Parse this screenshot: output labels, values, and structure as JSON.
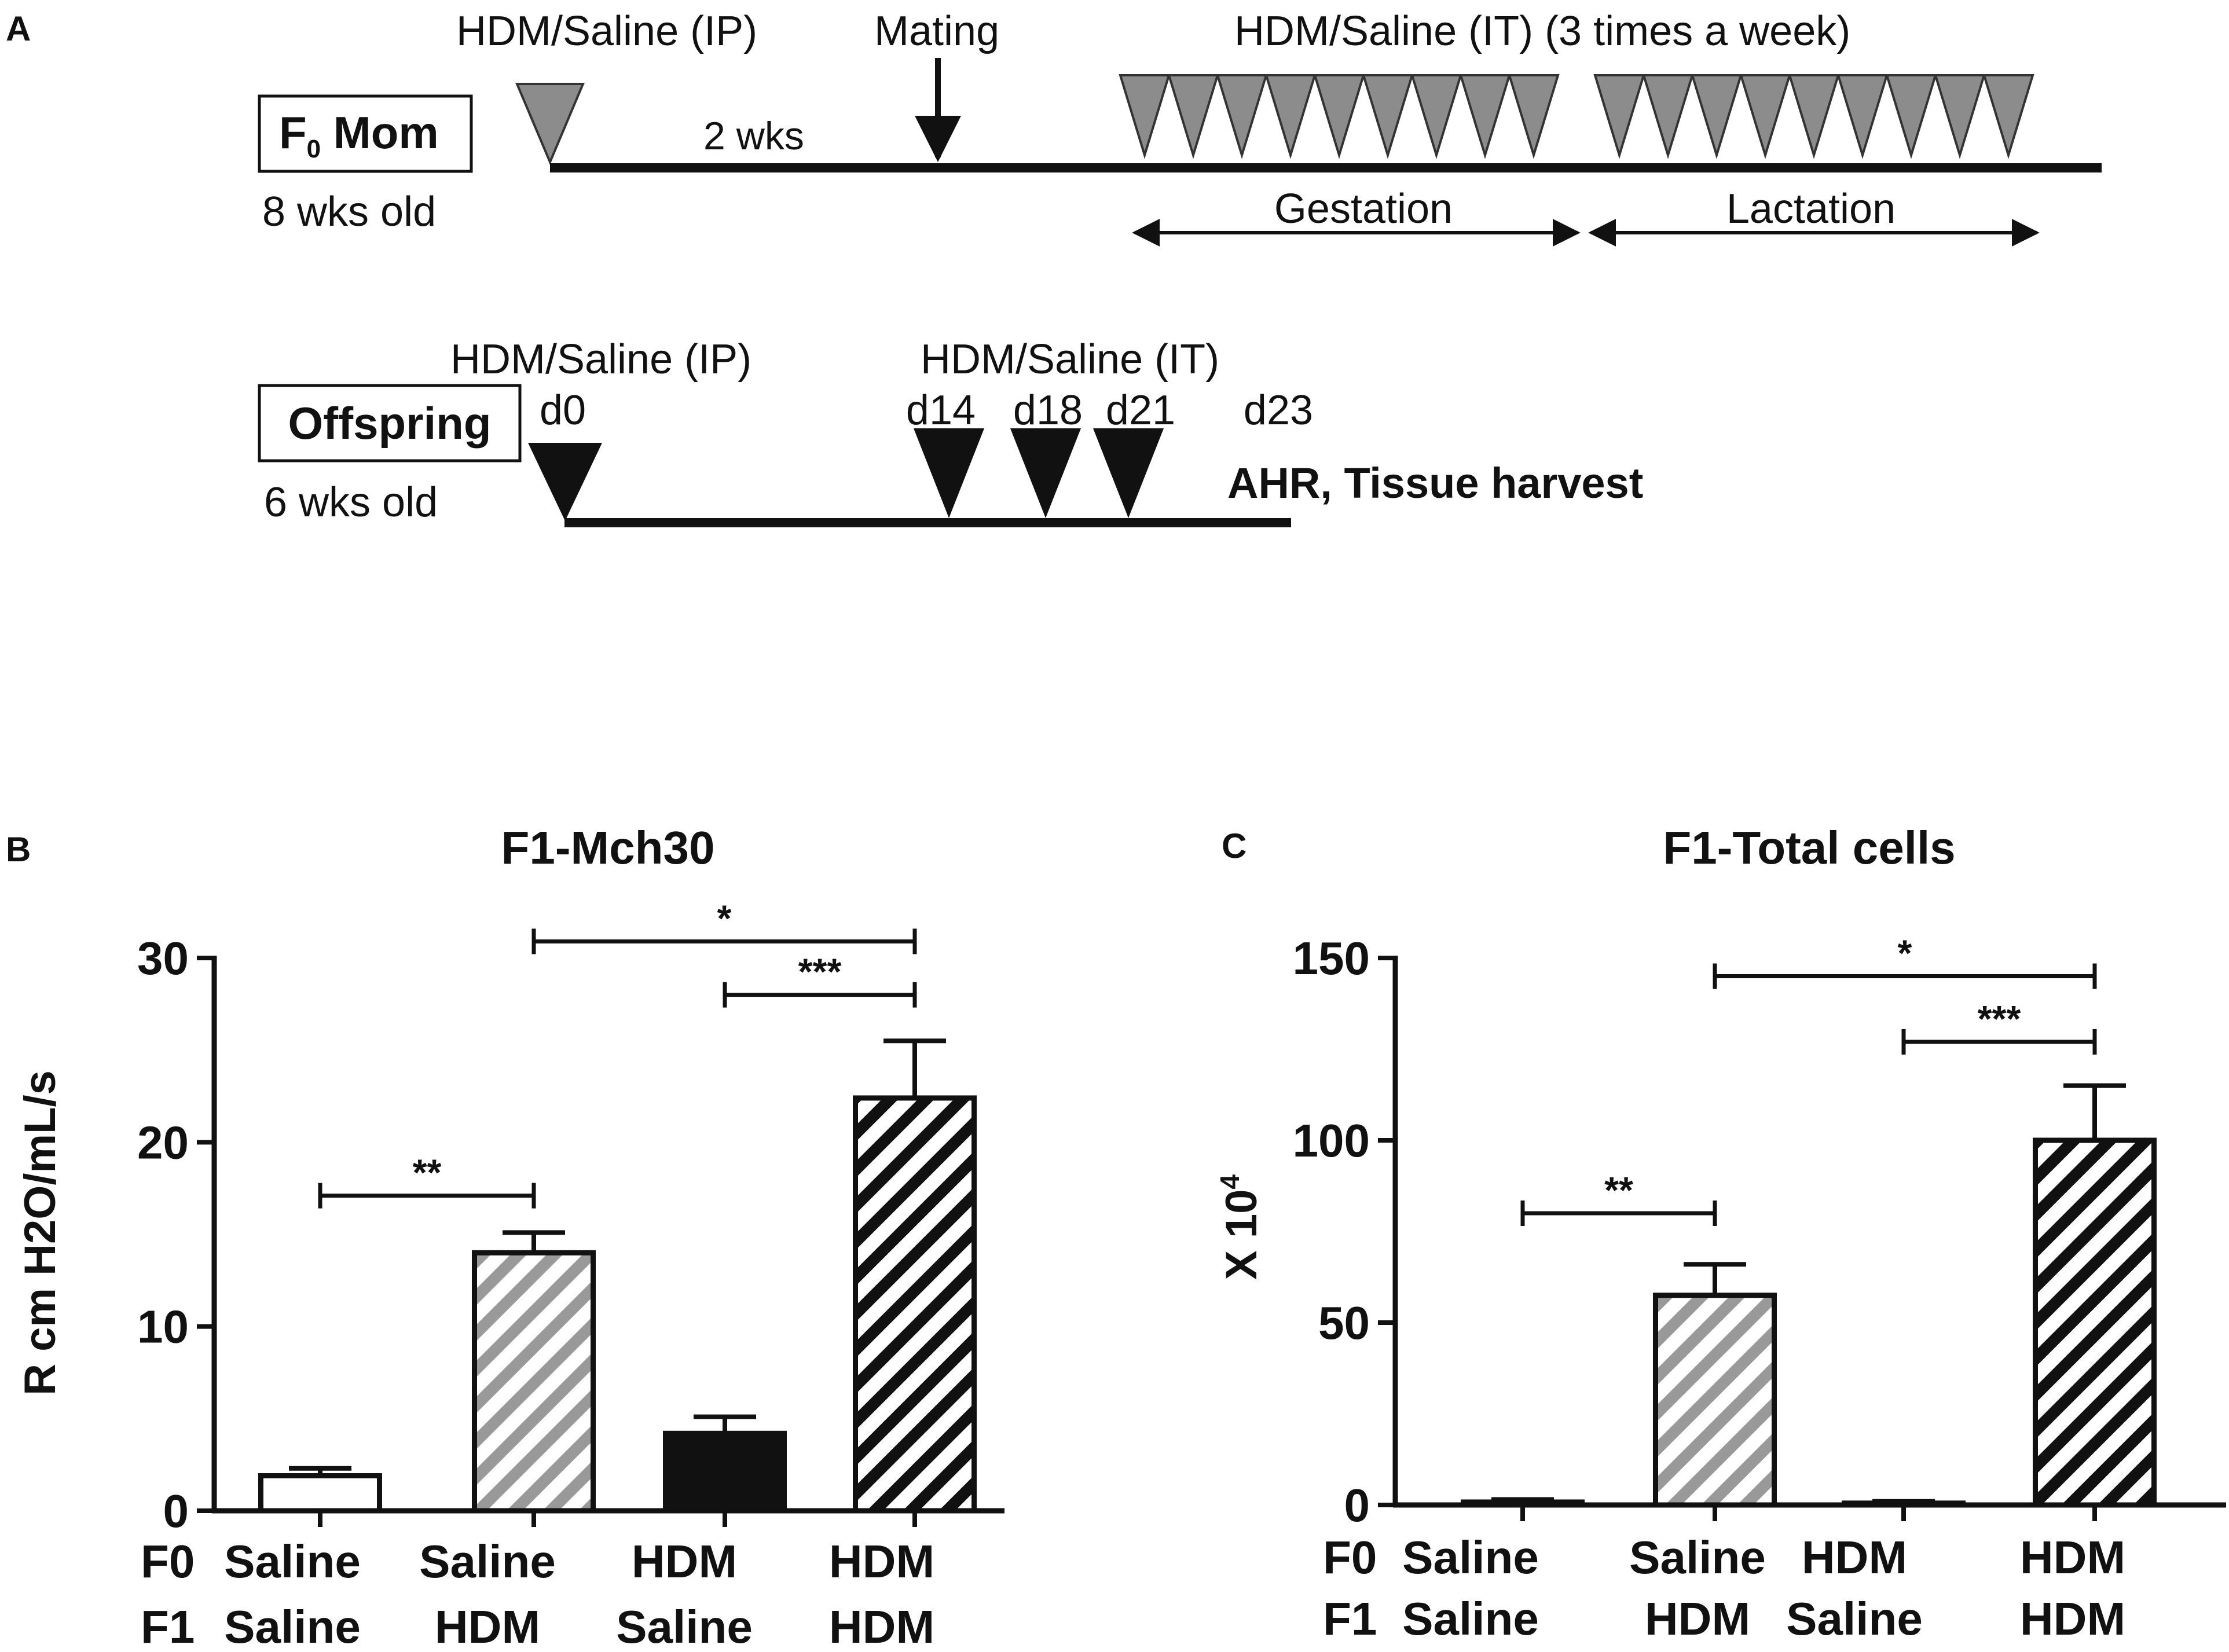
{
  "panel_a": {
    "letter": "A",
    "mom": {
      "box_label_main": "F",
      "box_label_sub": "0",
      "box_label_rest": " Mom",
      "age": "8 wks old",
      "ip_label": "HDM/Saline (IP)",
      "mating_label": "Mating",
      "interval_label": "2 wks",
      "it_label": "HDM/Saline (IT) (3 times a week)",
      "gestation_label": "Gestation",
      "lactation_label": "Lactation",
      "gestation_doses": 9,
      "lactation_doses": 9
    },
    "offspring": {
      "box_label": "Offspring",
      "age": "6 wks old",
      "ip_label": "HDM/Saline (IP)",
      "it_label": "HDM/Saline (IT)",
      "days": [
        "d0",
        "d14",
        "d18",
        "d21",
        "d23"
      ],
      "endpoint_label": "AHR, Tissue harvest"
    }
  },
  "chart_data": [
    {
      "panel": "B",
      "type": "bar",
      "title": "F1-Mch30",
      "ylabel": "R cm H2O/mL/s",
      "ylim": [
        0,
        30
      ],
      "yticks": [
        "0",
        "10",
        "20",
        "30"
      ],
      "row_labels": [
        "F0",
        "F1"
      ],
      "categories": [
        {
          "f0": "Saline",
          "f1": "Saline"
        },
        {
          "f0": "Saline",
          "f1": "HDM"
        },
        {
          "f0": "HDM",
          "f1": "Saline"
        },
        {
          "f0": "HDM",
          "f1": "HDM"
        }
      ],
      "values": [
        1.9,
        14.0,
        4.2,
        22.4
      ],
      "errors": [
        0.4,
        1.1,
        0.9,
        3.1
      ],
      "fills": [
        "white",
        "gray-hatch",
        "black",
        "black-hatch"
      ],
      "significance": [
        {
          "from": 0,
          "to": 1,
          "label": "**",
          "y": 17.1
        },
        {
          "from": 2,
          "to": 3,
          "label": "***",
          "y": 28.0
        },
        {
          "from": 1,
          "to": 3,
          "label": "*",
          "y": 30.9
        }
      ]
    },
    {
      "panel": "C",
      "type": "bar",
      "title": "F1-Total cells",
      "ylabel_main": "X 10",
      "ylabel_sup": "4",
      "ylim": [
        0,
        150
      ],
      "yticks": [
        "0",
        "50",
        "100",
        "150"
      ],
      "row_labels": [
        "F0",
        "F1"
      ],
      "categories": [
        {
          "f0": "Saline",
          "f1": "Saline"
        },
        {
          "f0": "Saline",
          "f1": "HDM"
        },
        {
          "f0": "HDM",
          "f1": "Saline"
        },
        {
          "f0": "HDM",
          "f1": "HDM"
        }
      ],
      "values": [
        0.8,
        57.5,
        0.5,
        100.0
      ],
      "errors": [
        0.7,
        8.5,
        0.5,
        15.0
      ],
      "fills": [
        "white",
        "gray-hatch",
        "black",
        "black-hatch"
      ],
      "significance": [
        {
          "from": 0,
          "to": 1,
          "label": "**",
          "y": 80.0
        },
        {
          "from": 2,
          "to": 3,
          "label": "***",
          "y": 127.0
        },
        {
          "from": 1,
          "to": 3,
          "label": "*",
          "y": 145.0
        }
      ]
    }
  ]
}
